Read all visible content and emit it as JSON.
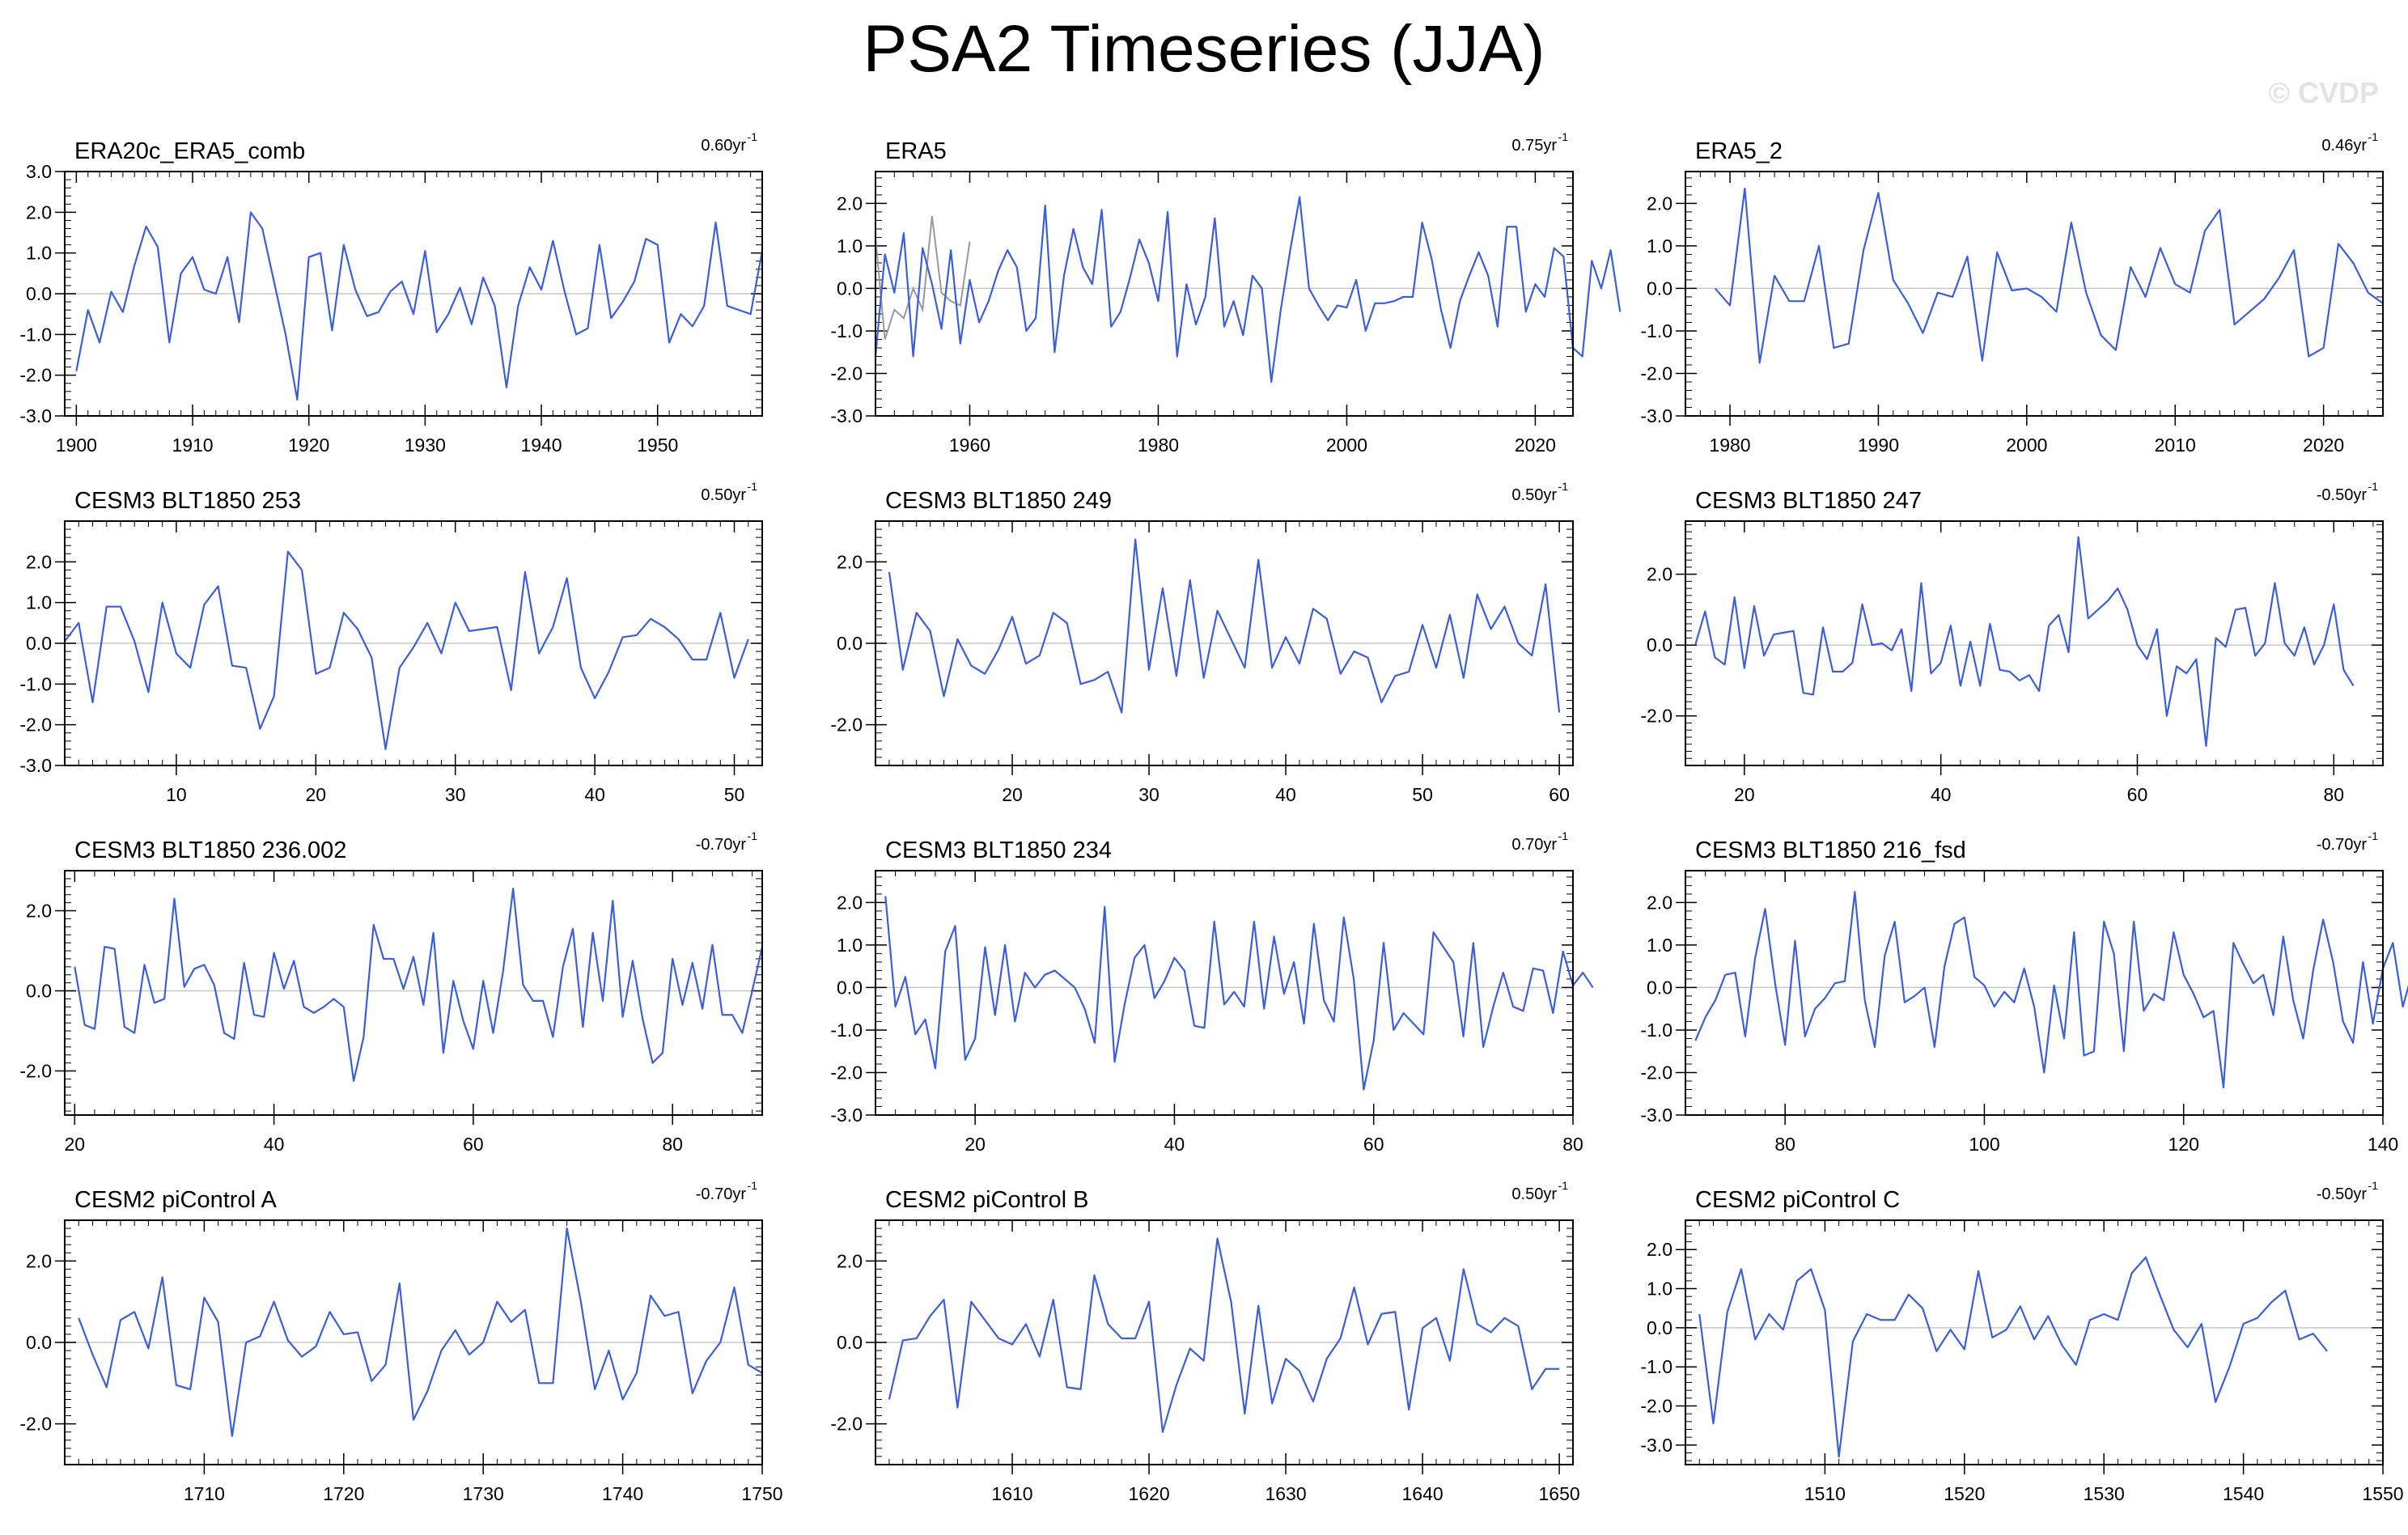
{
  "title": "PSA2 Timeseries (JJA)",
  "watermark": "© CVDP",
  "line_color": "#3a5fd9",
  "obs_overlay_color": "#999999",
  "chart_data": [
    {
      "type": "line",
      "title": "ERA20c_ERA5_comb",
      "trend": "0.60yr",
      "trend_exp": "-1",
      "x_start": 1900,
      "x_step": 1,
      "xlim": [
        1899,
        1959
      ],
      "ylim": [
        -3,
        3
      ],
      "yticks": [
        -3,
        -2,
        -1,
        0,
        1,
        2,
        3
      ],
      "ytick_labels": [
        "-3.0",
        "-2.0",
        "-1.0",
        "0.0",
        "1.0",
        "2.0",
        "3.0"
      ],
      "xticks": [
        1900,
        1910,
        1920,
        1930,
        1940,
        1950
      ],
      "values": [
        -1.9,
        -0.4,
        -1.2,
        0.05,
        -0.45,
        0.7,
        1.65,
        1.15,
        -1.2,
        0.5,
        0.9,
        0.1,
        0.0,
        0.9,
        -0.7,
        2.0,
        1.6,
        0.3,
        -1.0,
        -2.6,
        0.9,
        1.0,
        -0.9,
        1.2,
        0.1,
        -0.55,
        -0.45,
        0.05,
        0.3,
        -0.5,
        1.05,
        -0.95,
        -0.5,
        0.15,
        -0.75,
        0.4,
        -0.3,
        -2.3,
        -0.3,
        0.65,
        0.1,
        1.3,
        0.05,
        -1.0,
        -0.85,
        1.2,
        -0.6,
        -0.2,
        0.3,
        1.35,
        1.2,
        -1.2,
        -0.5,
        -0.8,
        -0.3,
        1.75,
        -0.3,
        -0.4,
        -0.5,
        1.05
      ]
    },
    {
      "type": "line",
      "title": "ERA5",
      "trend": "0.75yr",
      "trend_exp": "-1",
      "x_start": 1950,
      "x_step": 1,
      "xlim": [
        1950,
        2024
      ],
      "ylim": [
        -3,
        2.75
      ],
      "yticks": [
        -3,
        -2,
        -1,
        0,
        1,
        2
      ],
      "ytick_labels": [
        "-3.0",
        "-2.0",
        "-1.0",
        "0.0",
        "1.0",
        "2.0"
      ],
      "xticks": [
        1960,
        1980,
        2000,
        2020
      ],
      "values": [
        -1.6,
        0.8,
        -0.1,
        1.3,
        -1.6,
        0.95,
        0.1,
        -0.95,
        0.9,
        -1.3,
        0.2,
        -0.8,
        -0.3,
        0.4,
        0.9,
        0.5,
        -1.0,
        -0.7,
        1.95,
        -1.5,
        0.3,
        1.4,
        0.5,
        0.1,
        1.85,
        -0.9,
        -0.55,
        0.25,
        1.15,
        0.6,
        -0.3,
        1.8,
        -1.6,
        0.1,
        -0.85,
        -0.2,
        1.65,
        -0.9,
        -0.3,
        -1.1,
        0.3,
        0.0,
        -2.2,
        -0.5,
        0.9,
        2.15,
        0.0,
        -0.4,
        -0.75,
        -0.4,
        -0.45,
        0.2,
        -1.0,
        -0.35,
        -0.35,
        -0.3,
        -0.2,
        -0.2,
        1.55,
        0.7,
        -0.5,
        -1.4,
        -0.3,
        0.3,
        0.85,
        0.3,
        -0.9,
        1.45,
        1.45,
        -0.55,
        0.1,
        -0.2,
        0.95,
        0.75,
        -1.4,
        -1.6,
        0.65,
        0.0,
        0.9,
        -0.55
      ],
      "overlay": {
        "x_start": 1950,
        "values": [
          1.2,
          -1.2,
          -0.5,
          -0.7,
          0.0,
          -0.5,
          1.7,
          -0.1,
          -0.3,
          -0.4,
          1.1
        ]
      }
    },
    {
      "type": "line",
      "title": "ERA5_2",
      "trend": "0.46yr",
      "trend_exp": "-1",
      "x_start": 1979,
      "x_step": 1,
      "xlim": [
        1977,
        2024
      ],
      "ylim": [
        -3,
        2.75
      ],
      "yticks": [
        -3,
        -2,
        -1,
        0,
        1,
        2
      ],
      "ytick_labels": [
        "-3.0",
        "-2.0",
        "-1.0",
        "0.0",
        "1.0",
        "2.0"
      ],
      "xticks": [
        1980,
        1990,
        2000,
        2010,
        2020
      ],
      "values": [
        0.0,
        -0.4,
        2.35,
        -1.75,
        0.3,
        -0.3,
        -0.3,
        1.0,
        -1.4,
        -1.3,
        0.9,
        2.25,
        0.2,
        -0.35,
        -1.05,
        -0.1,
        -0.2,
        0.75,
        -1.7,
        0.85,
        -0.05,
        0.0,
        -0.2,
        -0.55,
        1.55,
        -0.1,
        -1.1,
        -1.45,
        0.5,
        -0.2,
        0.95,
        0.1,
        -0.1,
        1.35,
        1.85,
        -0.85,
        -0.55,
        -0.25,
        0.25,
        0.9,
        -1.6,
        -1.4,
        1.05,
        0.6,
        -0.1,
        -0.35
      ]
    },
    {
      "type": "line",
      "title": "CESM3 BLT1850 253",
      "trend": "0.50yr",
      "trend_exp": "-1",
      "x_start": 2,
      "x_step": 1,
      "xlim": [
        2,
        52
      ],
      "ylim": [
        -3,
        3
      ],
      "yticks": [
        -3,
        -2,
        -1,
        0,
        1,
        2
      ],
      "ytick_labels": [
        "-3.0",
        "-2.0",
        "-1.0",
        "0.0",
        "1.0",
        "2.0"
      ],
      "xticks": [
        10,
        20,
        30,
        40,
        50
      ],
      "values": [
        0.05,
        0.5,
        -1.45,
        0.9,
        0.9,
        0.05,
        -1.2,
        1.0,
        -0.25,
        -0.6,
        0.95,
        1.4,
        -0.55,
        -0.6,
        -2.1,
        -1.3,
        2.25,
        1.8,
        -0.75,
        -0.6,
        0.75,
        0.35,
        -0.35,
        -2.6,
        -0.6,
        -0.1,
        0.5,
        -0.25,
        1.0,
        0.3,
        0.35,
        0.4,
        -1.15,
        1.75,
        -0.25,
        0.4,
        1.6,
        -0.6,
        -1.35,
        -0.7,
        0.15,
        0.2,
        0.6,
        0.4,
        0.1,
        -0.4,
        -0.4,
        0.75,
        -0.85,
        0.1
      ]
    },
    {
      "type": "line",
      "title": "CESM3 BLT1850 249",
      "trend": "0.50yr",
      "trend_exp": "-1",
      "x_start": 11,
      "x_step": 1,
      "xlim": [
        10,
        61
      ],
      "ylim": [
        -3,
        3
      ],
      "yticks": [
        -2,
        0,
        2
      ],
      "ytick_labels": [
        "-2.0",
        "0.0",
        "2.0"
      ],
      "xticks": [
        20,
        30,
        40,
        50,
        60
      ],
      "values": [
        1.75,
        -0.65,
        0.75,
        0.3,
        -1.3,
        0.1,
        -0.55,
        -0.75,
        -0.15,
        0.65,
        -0.5,
        -0.3,
        0.75,
        0.5,
        -1.0,
        -0.9,
        -0.7,
        -1.7,
        2.55,
        -0.65,
        1.35,
        -0.8,
        1.55,
        -0.85,
        0.8,
        0.1,
        -0.6,
        2.05,
        -0.6,
        0.15,
        -0.5,
        0.85,
        0.6,
        -0.75,
        -0.2,
        -0.35,
        -1.45,
        -0.8,
        -0.7,
        0.45,
        -0.6,
        0.7,
        -0.85,
        1.2,
        0.35,
        0.9,
        0.0,
        -0.3,
        1.45,
        -1.7
      ]
    },
    {
      "type": "line",
      "title": "CESM3 BLT1850 247",
      "trend": "-0.50yr",
      "trend_exp": "-1",
      "x_start": 15,
      "x_step": 1,
      "xlim": [
        14,
        85
      ],
      "ylim": [
        -3.4,
        3.5
      ],
      "yticks": [
        -2,
        0,
        2
      ],
      "ytick_labels": [
        "-2.0",
        "0.0",
        "2.0"
      ],
      "xticks": [
        20,
        40,
        60,
        80
      ],
      "values": [
        0.0,
        0.95,
        -0.35,
        -0.55,
        1.35,
        -0.65,
        1.1,
        -0.3,
        0.3,
        0.35,
        0.4,
        -1.35,
        -1.4,
        0.5,
        -0.75,
        -0.75,
        -0.5,
        1.15,
        0.0,
        0.05,
        -0.15,
        0.45,
        -1.3,
        1.75,
        -0.8,
        -0.5,
        0.55,
        -1.15,
        0.1,
        -1.15,
        0.6,
        -0.7,
        -0.75,
        -1.0,
        -0.85,
        -1.3,
        0.55,
        0.85,
        -0.2,
        3.05,
        0.75,
        1.0,
        1.25,
        1.6,
        1.0,
        0.0,
        -0.4,
        0.45,
        -2.0,
        -0.6,
        -0.8,
        -0.4,
        -2.85,
        0.2,
        -0.05,
        1.0,
        1.05,
        -0.3,
        0.05,
        1.75,
        0.05,
        -0.3,
        0.5,
        -0.55,
        0.0,
        1.15,
        -0.7,
        -1.15
      ]
    },
    {
      "type": "line",
      "title": "CESM3 BLT1850 236.002",
      "trend": "-0.70yr",
      "trend_exp": "-1",
      "x_start": 20,
      "x_step": 1,
      "xlim": [
        19,
        89
      ],
      "ylim": [
        -3.1,
        3
      ],
      "yticks": [
        -2,
        0,
        2
      ],
      "ytick_labels": [
        "-2.0",
        "0.0",
        "2.0"
      ],
      "xticks": [
        20,
        40,
        60,
        80
      ],
      "values": [
        0.6,
        -0.85,
        -0.95,
        1.1,
        1.05,
        -0.9,
        -1.05,
        0.65,
        -0.3,
        -0.2,
        2.3,
        0.1,
        0.55,
        0.65,
        0.15,
        -1.05,
        -1.2,
        0.7,
        -0.6,
        -0.65,
        0.95,
        0.05,
        0.75,
        -0.4,
        -0.55,
        -0.4,
        -0.2,
        -0.4,
        -2.25,
        -1.15,
        1.65,
        0.8,
        0.8,
        0.05,
        0.85,
        -0.35,
        1.45,
        -1.55,
        0.25,
        -0.75,
        -1.45,
        0.25,
        -1.05,
        0.5,
        2.55,
        0.15,
        -0.25,
        -0.25,
        -1.15,
        0.6,
        1.55,
        -0.9,
        1.45,
        -0.25,
        2.25,
        -0.65,
        0.75,
        -0.7,
        -1.8,
        -1.55,
        0.8,
        -0.35,
        0.7,
        -0.45,
        1.15,
        -0.6,
        -0.6,
        -1.05,
        0.0,
        1.1
      ]
    },
    {
      "type": "line",
      "title": "CESM3 BLT1850 234",
      "trend": "0.70yr",
      "trend_exp": "-1",
      "x_start": 11,
      "x_step": 1,
      "xlim": [
        10,
        80
      ],
      "ylim": [
        -3,
        2.75
      ],
      "yticks": [
        -3,
        -2,
        -1,
        0,
        1,
        2
      ],
      "ytick_labels": [
        "-3.0",
        "-2.0",
        "-1.0",
        "0.0",
        "1.0",
        "2.0"
      ],
      "xticks": [
        20,
        40,
        60,
        80
      ],
      "values": [
        2.15,
        -0.45,
        0.25,
        -1.1,
        -0.75,
        -1.9,
        0.85,
        1.45,
        -1.7,
        -1.2,
        0.95,
        -0.65,
        1.0,
        -0.8,
        0.35,
        0.0,
        0.3,
        0.4,
        0.2,
        0.0,
        -0.5,
        -1.3,
        1.9,
        -1.75,
        -0.4,
        0.7,
        1.0,
        -0.25,
        0.15,
        0.7,
        0.4,
        -0.9,
        -0.95,
        1.55,
        -0.4,
        -0.1,
        -0.45,
        1.55,
        -0.5,
        1.2,
        -0.15,
        0.6,
        -0.85,
        1.5,
        -0.3,
        -0.8,
        1.65,
        0.2,
        -2.4,
        -1.25,
        1.05,
        -1.0,
        -0.6,
        -0.85,
        -1.1,
        1.3,
        0.95,
        0.6,
        -1.15,
        1.05,
        -1.4,
        -0.45,
        0.35,
        -0.45,
        -0.55,
        0.45,
        0.4,
        -0.6,
        0.85,
        0.05,
        0.35,
        0.0
      ]
    },
    {
      "type": "line",
      "title": "CESM3 BLT1850 216_fsd",
      "trend": "-0.70yr",
      "trend_exp": "-1",
      "x_start": 71,
      "x_step": 1,
      "xlim": [
        70,
        140
      ],
      "ylim": [
        -3,
        2.75
      ],
      "yticks": [
        -3,
        -2,
        -1,
        0,
        1,
        2
      ],
      "ytick_labels": [
        "-3.0",
        "-2.0",
        "-1.0",
        "0.0",
        "1.0",
        "2.0"
      ],
      "xticks": [
        80,
        100,
        120,
        140
      ],
      "values": [
        -1.25,
        -0.7,
        -0.3,
        0.3,
        0.35,
        -1.15,
        0.7,
        1.85,
        0.1,
        -1.35,
        1.1,
        -1.15,
        -0.5,
        -0.25,
        0.1,
        0.15,
        2.25,
        -0.3,
        -1.4,
        0.75,
        1.55,
        -0.35,
        -0.2,
        0.0,
        -1.4,
        0.5,
        1.5,
        1.65,
        0.25,
        0.05,
        -0.45,
        -0.1,
        -0.35,
        0.45,
        -0.45,
        -2.0,
        0.05,
        -1.2,
        1.3,
        -1.6,
        -1.5,
        1.55,
        0.8,
        -1.5,
        1.55,
        -0.55,
        -0.15,
        -0.3,
        1.3,
        0.3,
        -0.15,
        -0.7,
        -0.55,
        -2.35,
        1.05,
        0.55,
        0.1,
        0.3,
        -0.65,
        1.2,
        -0.3,
        -1.2,
        0.4,
        1.6,
        0.6,
        -0.8,
        -1.3,
        0.6,
        -0.85,
        0.45,
        1.05,
        -0.45,
        0.4
      ]
    },
    {
      "type": "line",
      "title": "CESM2 piControl A",
      "trend": "-0.70yr",
      "trend_exp": "-1",
      "x_start": 1701,
      "x_step": 1,
      "xlim": [
        1700,
        1750
      ],
      "ylim": [
        -3,
        3
      ],
      "yticks": [
        -2,
        0,
        2
      ],
      "ytick_labels": [
        "-2.0",
        "0.0",
        "2.0"
      ],
      "xticks": [
        1710,
        1720,
        1730,
        1740,
        1750
      ],
      "values": [
        0.6,
        -0.3,
        -1.1,
        0.55,
        0.75,
        -0.15,
        1.6,
        -1.05,
        -1.15,
        1.1,
        0.5,
        -2.3,
        0.0,
        0.15,
        1.0,
        0.05,
        -0.35,
        -0.1,
        0.75,
        0.2,
        0.25,
        -0.95,
        -0.55,
        1.45,
        -1.9,
        -1.2,
        -0.2,
        0.3,
        -0.3,
        0.0,
        1.0,
        0.5,
        0.8,
        -1.0,
        -1.0,
        2.8,
        1.0,
        -1.15,
        -0.2,
        -1.4,
        -0.75,
        1.15,
        0.65,
        0.75,
        -1.25,
        -0.45,
        0.0,
        1.35,
        -0.55,
        -0.75
      ]
    },
    {
      "type": "line",
      "title": "CESM2 piControl B",
      "trend": "0.50yr",
      "trend_exp": "-1",
      "x_start": 1601,
      "x_step": 1,
      "xlim": [
        1600,
        1651
      ],
      "ylim": [
        -3,
        3
      ],
      "yticks": [
        -2,
        0,
        2
      ],
      "ytick_labels": [
        "-2.0",
        "0.0",
        "2.0"
      ],
      "xticks": [
        1610,
        1620,
        1630,
        1640,
        1650
      ],
      "values": [
        -1.4,
        0.05,
        0.1,
        0.65,
        1.05,
        -1.6,
        1.0,
        0.55,
        0.1,
        -0.05,
        0.45,
        -0.35,
        1.05,
        -1.1,
        -1.15,
        1.65,
        0.45,
        0.1,
        0.1,
        1.0,
        -2.2,
        -1.05,
        -0.15,
        -0.45,
        2.55,
        1.0,
        -1.75,
        0.9,
        -1.5,
        -0.4,
        -0.7,
        -1.45,
        -0.4,
        0.1,
        1.35,
        -0.05,
        0.7,
        0.75,
        -1.65,
        0.35,
        0.6,
        -0.45,
        1.8,
        0.45,
        0.25,
        0.6,
        0.4,
        -1.15,
        -0.65,
        -0.65
      ]
    },
    {
      "type": "line",
      "title": "CESM2 piControl C",
      "trend": "-0.50yr",
      "trend_exp": "-1",
      "x_start": 1501,
      "x_step": 1,
      "xlim": [
        1500,
        1550
      ],
      "ylim": [
        -3.5,
        2.75
      ],
      "yticks": [
        -3,
        -2,
        -1,
        0,
        1,
        2
      ],
      "ytick_labels": [
        "-3.0",
        "-2.0",
        "-1.0",
        "0.0",
        "1.0",
        "2.0"
      ],
      "xticks": [
        1510,
        1520,
        1530,
        1540,
        1550
      ],
      "values": [
        0.35,
        -2.45,
        0.4,
        1.5,
        -0.3,
        0.35,
        -0.05,
        1.2,
        1.5,
        0.45,
        -3.3,
        -0.35,
        0.35,
        0.2,
        0.2,
        0.85,
        0.5,
        -0.6,
        -0.05,
        -0.55,
        1.45,
        -0.25,
        -0.05,
        0.55,
        -0.3,
        0.3,
        -0.45,
        -0.95,
        0.2,
        0.35,
        0.2,
        1.4,
        1.8,
        0.85,
        -0.05,
        -0.5,
        0.1,
        -1.9,
        -1.0,
        0.1,
        0.25,
        0.65,
        0.95,
        -0.3,
        -0.15,
        -0.6
      ]
    }
  ]
}
